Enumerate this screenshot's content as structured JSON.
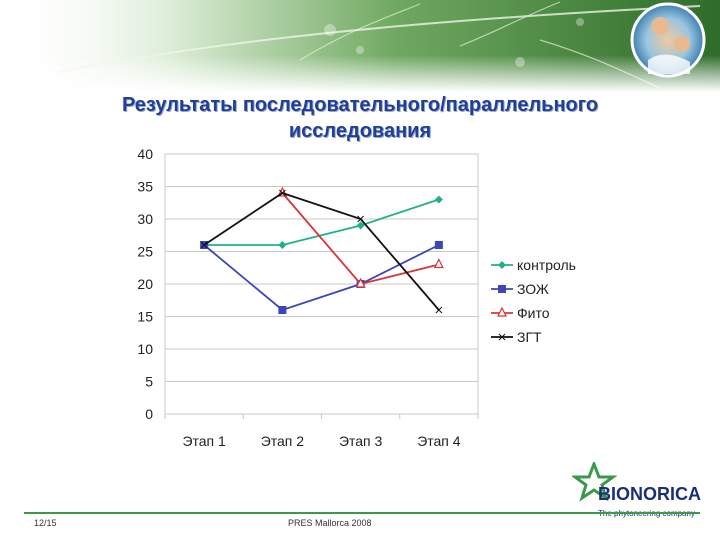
{
  "slide": {
    "title_line1": "Результаты последовательного/параллельного",
    "title_line2": "исследования",
    "footer_left": "12/15",
    "footer_center": "PRES Mallorca 2008",
    "brand_name": "BIONORICA",
    "brand_tagline": "The phytoneering company",
    "accent_color": "#1f3f9a",
    "brand_green": "#3a9a4a"
  },
  "chart_data": {
    "type": "line",
    "categories": [
      "Этап 1",
      "Этап 2",
      "Этап 3",
      "Этап 4"
    ],
    "ylim": [
      0,
      40
    ],
    "yticks": [
      "0",
      "5",
      "10",
      "15",
      "20",
      "25",
      "30",
      "35",
      "40"
    ],
    "grid": true,
    "legend_position": "right",
    "series": [
      {
        "name": "контроль",
        "values": [
          26,
          26,
          29,
          33
        ],
        "color": "#21b08a",
        "marker": "diamond"
      },
      {
        "name": "ЗОЖ",
        "values": [
          26,
          16,
          20,
          26
        ],
        "color": "#3b46b8",
        "marker": "square"
      },
      {
        "name": "Фито",
        "values": [
          null,
          34,
          20,
          23
        ],
        "color": "#d8353a",
        "marker": "triangle"
      },
      {
        "name": "ЗГТ",
        "values": [
          26,
          34,
          30,
          16
        ],
        "color": "#111111",
        "marker": "cross"
      }
    ]
  }
}
